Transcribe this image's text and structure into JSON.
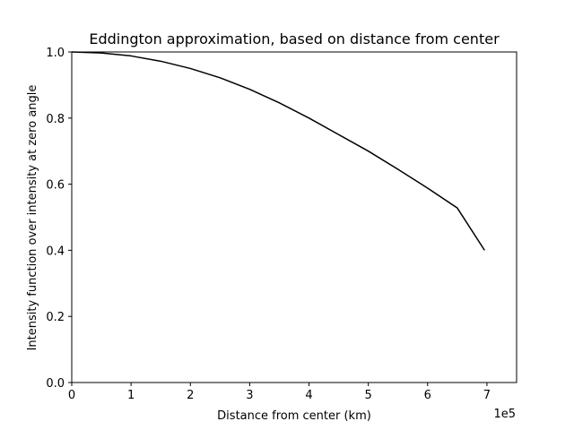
{
  "chart_data": {
    "type": "line",
    "title": "Eddington approximation, based on distance from center",
    "xlabel": "Distance from center (km)",
    "ylabel": "Intensity function over intensity at zero angle",
    "x_offset_label": "1e5",
    "xlim": [
      0,
      750000
    ],
    "ylim": [
      0.0,
      1.0
    ],
    "x_ticks": [
      0,
      100000,
      200000,
      300000,
      400000,
      500000,
      600000,
      700000
    ],
    "x_tick_labels": [
      "0",
      "1",
      "2",
      "3",
      "4",
      "5",
      "6",
      "7"
    ],
    "y_ticks": [
      0.0,
      0.2,
      0.4,
      0.6,
      0.8,
      1.0
    ],
    "y_tick_labels": [
      "0.0",
      "0.2",
      "0.4",
      "0.6",
      "0.8",
      "1.0"
    ],
    "grid": false,
    "line_color": "#000000",
    "series": [
      {
        "x": [
          0,
          50000,
          100000,
          150000,
          200000,
          250000,
          300000,
          350000,
          400000,
          450000,
          500000,
          550000,
          600000,
          650000,
          696000
        ],
        "y": [
          1.0,
          0.997,
          0.988,
          0.972,
          0.95,
          0.922,
          0.887,
          0.846,
          0.8,
          0.75,
          0.7,
          0.645,
          0.588,
          0.528,
          0.4
        ]
      }
    ]
  }
}
